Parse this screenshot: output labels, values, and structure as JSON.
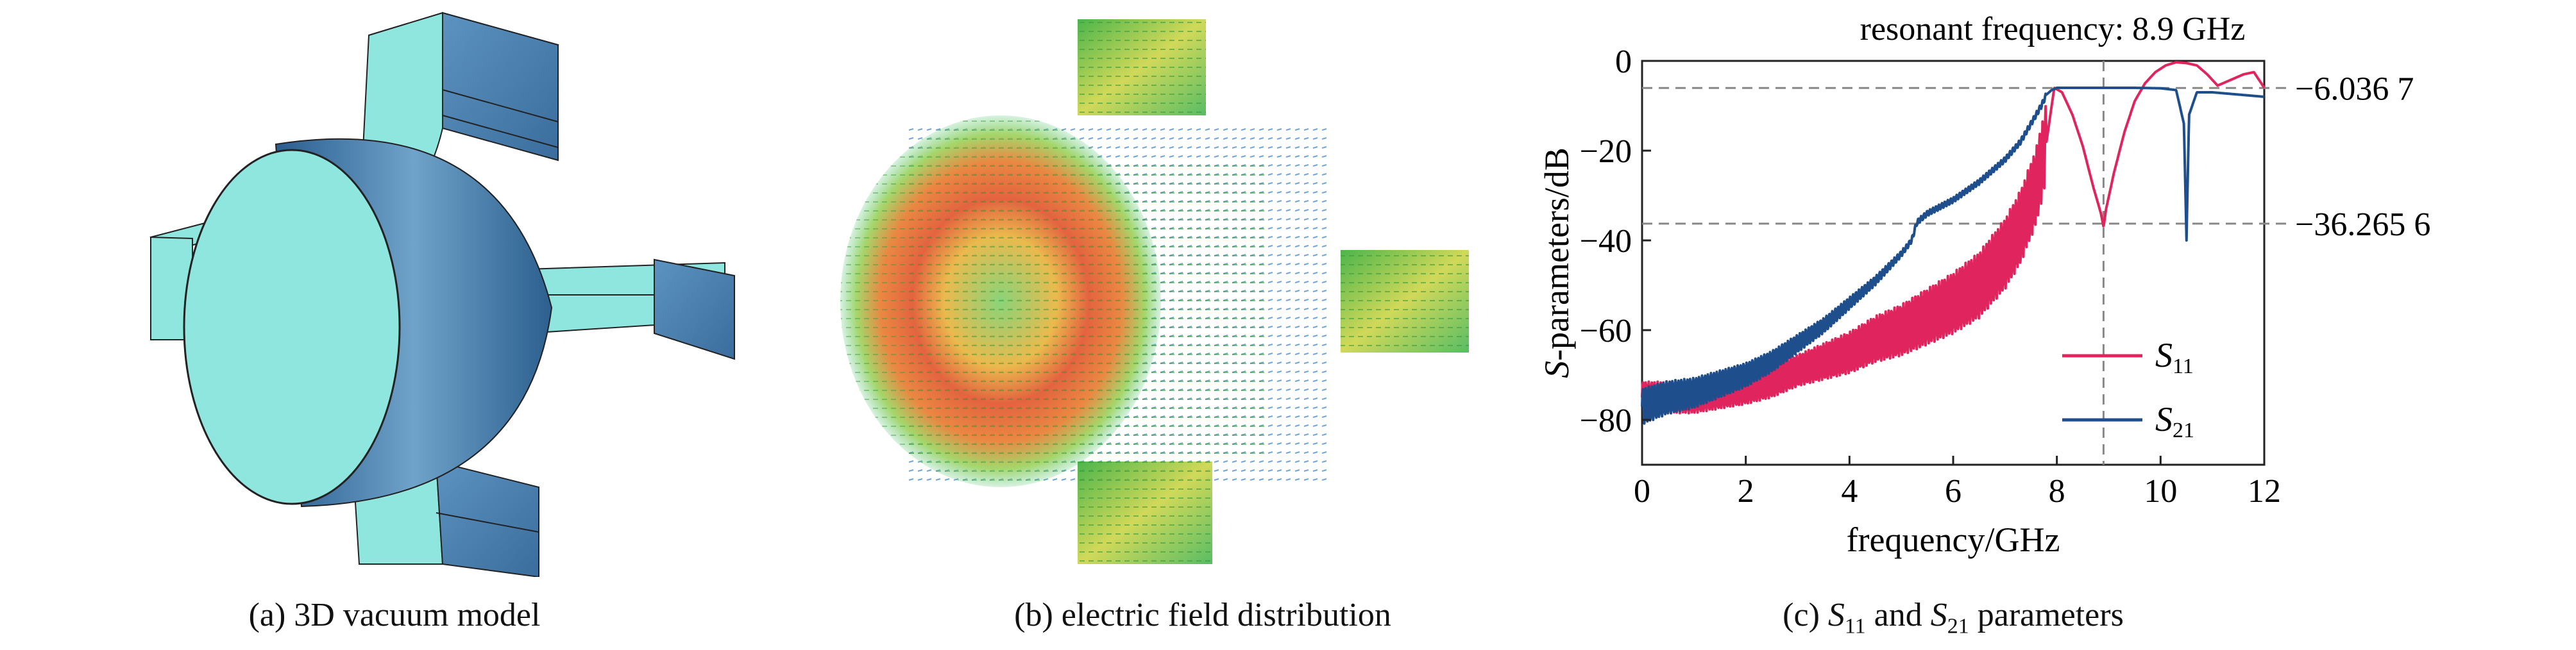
{
  "figure": {
    "panels": [
      {
        "id": "a",
        "caption": "(a) 3D vacuum model"
      },
      {
        "id": "b",
        "caption": "(b) electric field distribution"
      },
      {
        "id": "c",
        "caption_prefix": "(c) ",
        "caption_s": "S",
        "caption_s11_sub": "11",
        "caption_mid": " and ",
        "caption_s21_sub": "21",
        "caption_suffix": " parameters"
      }
    ]
  },
  "chart_data": {
    "type": "line",
    "title": "resonant frequency: 8.9 GHz",
    "xlabel": "frequency/GHz",
    "ylabel_italic": "S",
    "ylabel_rest": "-parameters/dB",
    "xlim": [
      0,
      12
    ],
    "ylim": [
      -90,
      0
    ],
    "xticks": [
      0,
      2,
      4,
      6,
      8,
      10,
      12
    ],
    "yticks": [
      0,
      -20,
      -40,
      -60,
      -80
    ],
    "grid": false,
    "legend_position": "bottom-right",
    "reference_lines": {
      "vertical_x": 8.9,
      "horizontal": [
        {
          "y": -6.0367,
          "label": "-6.036 7"
        },
        {
          "y": -36.2656,
          "label": "-36.265 6"
        }
      ]
    },
    "series": [
      {
        "name_main": "S",
        "name_sub": "11",
        "color": "#e0245e",
        "x": [
          0,
          0.5,
          1,
          1.5,
          2,
          2.5,
          3,
          3.5,
          4,
          4.5,
          5,
          5.5,
          6,
          6.5,
          7,
          7.3,
          7.6,
          7.8,
          7.95,
          8.1,
          8.3,
          8.5,
          8.7,
          8.85,
          8.9,
          8.95,
          9.1,
          9.3,
          9.5,
          9.7,
          9.9,
          10.1,
          10.3,
          10.5,
          10.7,
          10.9,
          11.1,
          11.3,
          11.6,
          11.8,
          12
        ],
        "y": [
          -75,
          -75,
          -75,
          -74,
          -73,
          -71.5,
          -69,
          -67,
          -65,
          -62,
          -60,
          -57,
          -54,
          -50,
          -43,
          -37,
          -28,
          -18,
          -6,
          -7,
          -12,
          -19,
          -28,
          -34,
          -37,
          -33,
          -25,
          -16,
          -9,
          -5,
          -2.5,
          -1,
          -0.3,
          -0.5,
          -1,
          -3,
          -5.5,
          -4.5,
          -3,
          -2.5,
          -6
        ]
      },
      {
        "name_main": "S",
        "name_sub": "21",
        "color": "#1f4e8c",
        "x": [
          0,
          0.5,
          1,
          1.5,
          2,
          2.5,
          3,
          3.5,
          4,
          4.5,
          5,
          5.2,
          5.3,
          5.5,
          6,
          6.5,
          7,
          7.3,
          7.5,
          7.7,
          7.8,
          7.9,
          8.0,
          8.3,
          8.9,
          9.5,
          10.0,
          10.3,
          10.45,
          10.5,
          10.55,
          10.7,
          11,
          11.5,
          12
        ],
        "y": [
          -77,
          -75,
          -74,
          -72,
          -70,
          -67,
          -63,
          -59,
          -54,
          -49,
          -43,
          -40,
          -36,
          -34,
          -31,
          -27,
          -22,
          -18,
          -14,
          -10,
          -7.5,
          -6.5,
          -6.0,
          -6.0,
          -6.0,
          -6.0,
          -6.1,
          -6.5,
          -14,
          -40,
          -12,
          -7,
          -7,
          -7.5,
          -8
        ]
      }
    ]
  }
}
